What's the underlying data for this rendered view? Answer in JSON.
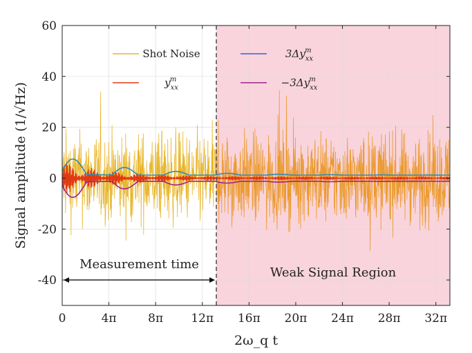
{
  "chart_data": {
    "type": "line",
    "title": "",
    "xlabel": "2ω_q t",
    "ylabel": "Signal amplitude (1/√Hz)",
    "xlim": [
      0,
      33.2
    ],
    "ylim": [
      -50,
      60
    ],
    "x_unit": "π",
    "x_ticks": [
      {
        "value": 0,
        "label": "0"
      },
      {
        "value": 4,
        "label": "4π"
      },
      {
        "value": 8,
        "label": "8π"
      },
      {
        "value": 12,
        "label": "12π"
      },
      {
        "value": 16,
        "label": "16π"
      },
      {
        "value": 20,
        "label": "20π"
      },
      {
        "value": 24,
        "label": "24π"
      },
      {
        "value": 28,
        "label": "28π"
      },
      {
        "value": 32,
        "label": "32π"
      }
    ],
    "y_ticks": [
      {
        "value": 60,
        "label": "60"
      },
      {
        "value": 40,
        "label": "40"
      },
      {
        "value": 20,
        "label": "20"
      },
      {
        "value": 0,
        "label": "0"
      },
      {
        "value": -20,
        "label": "-20"
      },
      {
        "value": -40,
        "label": "-40"
      }
    ],
    "grid": true,
    "measurement_end_x": 13.2,
    "series": [
      {
        "name": "Shot Noise",
        "color": "#E8B528",
        "color_weak_region": "#EB9A2E",
        "envelope_typical": 22,
        "envelope_peak": 42
      },
      {
        "name": "y_xx^m",
        "color": "#E03A14",
        "amplitude_start": 6,
        "decay": 0.22,
        "frequency": 1.0
      },
      {
        "name": "3Δy_xx^m",
        "color": "#3A62C8",
        "amplitude_start": 8.5,
        "decay": 0.16,
        "frequency": 1.0,
        "baseline": 1.2
      },
      {
        "name": "−3Δy_xx^m",
        "color": "#A0208E",
        "amplitude_start": 8.5,
        "decay": 0.16,
        "frequency": 1.0,
        "baseline": -1.2
      }
    ],
    "legend": {
      "position": "top",
      "entries": [
        {
          "label_main": "Shot Noise",
          "color": "#E8B528"
        },
        {
          "label_main": "y",
          "sub": "xx",
          "sup": "m",
          "color": "#E03A14"
        },
        {
          "label_prefix": "3Δy",
          "sub": "xx",
          "sup": "m",
          "color": "#3A62C8"
        },
        {
          "label_prefix": "−3Δy",
          "sub": "xx",
          "sup": "m",
          "color": "#A0208E"
        }
      ]
    },
    "annotations": {
      "measurement_label": "Measurement time",
      "weak_region_label": "Weak Signal Region",
      "arrow_y": -40,
      "label_y": -36.5,
      "weak_region_color": "#F9D4DC"
    }
  }
}
